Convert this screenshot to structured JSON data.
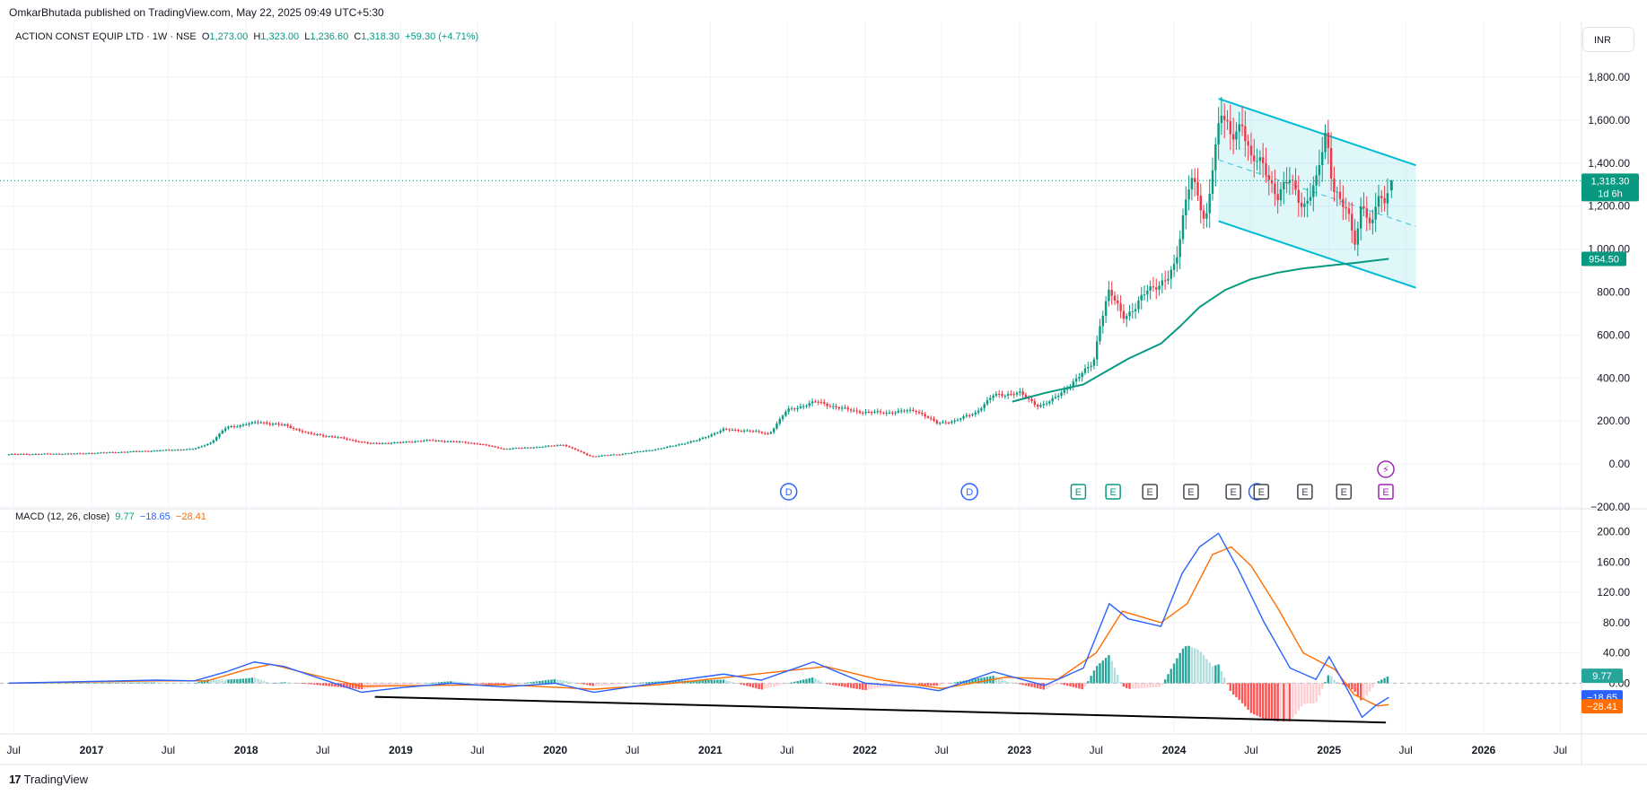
{
  "header": {
    "published": "OmkarBhutada published on TradingView.com, May 22, 2025 09:49 UTC+5:30"
  },
  "symbol": {
    "name": "ACTION CONST EQUIP LTD · 1W · NSE",
    "o_label": "O",
    "o": "1,273.00",
    "h_label": "H",
    "h": "1,323.00",
    "l_label": "L",
    "l": "1,236.60",
    "c_label": "C",
    "c": "1,318.30",
    "change": "+59.30 (+4.71%)"
  },
  "currency": "INR",
  "price_badges": {
    "last": "1,318.30",
    "countdown": "1d 6h",
    "ma": "954.50"
  },
  "macd_header": {
    "label": "MACD (12, 26, close)",
    "hist": "9.77",
    "macd": "−18.65",
    "signal": "−28.41"
  },
  "macd_badges": {
    "hist": "9.77",
    "macd": "−18.65",
    "signal": "−28.41"
  },
  "brand": {
    "name": "TradingView"
  },
  "colors": {
    "up": "#089981",
    "down": "#f23645",
    "macd": "#2962ff",
    "signal": "#ff6d00",
    "channel": "#00bcd4",
    "ma": "#089981",
    "earnings": "#089981",
    "dividend": "#2962ff",
    "purple": "#9c27b0"
  },
  "events": {
    "dividends": [
      {
        "date": "2021-07-05",
        "label": "D"
      },
      {
        "date": "2022-09-05",
        "label": "D"
      },
      {
        "date": "2024-07-15",
        "label": ""
      }
    ],
    "earnings": [
      {
        "date": "2023-05-20",
        "label": "E",
        "style": "green"
      },
      {
        "date": "2023-08-10",
        "label": "E",
        "style": "green"
      },
      {
        "date": "2023-11-05",
        "label": "E",
        "style": "gray"
      },
      {
        "date": "2024-02-10",
        "label": "E",
        "style": "gray"
      },
      {
        "date": "2024-05-20",
        "label": "E",
        "style": "gray"
      },
      {
        "date": "2024-07-25",
        "label": "E",
        "style": "gray"
      },
      {
        "date": "2024-11-05",
        "label": "E",
        "style": "gray"
      },
      {
        "date": "2025-02-05",
        "label": "E",
        "style": "gray"
      },
      {
        "date": "2025-05-15",
        "label": "E",
        "style": "purple"
      }
    ],
    "flash": {
      "date": "2025-05-15",
      "label": "⚡"
    }
  },
  "chart_data": [
    {
      "type": "candlestick",
      "title": "ACTION CONST EQUIP LTD · 1W · NSE",
      "ylim": [
        -200,
        1900
      ],
      "y_ticks": [
        "1,800.00",
        "1,600.00",
        "1,400.00",
        "1,200.00",
        "1,000.00",
        "800.00",
        "600.00",
        "400.00",
        "200.00",
        "0.00",
        "−200.00"
      ],
      "y_tick_values": [
        1800,
        1600,
        1400,
        1200,
        1000,
        800,
        600,
        400,
        200,
        0,
        -200
      ],
      "x_tick_labels": [
        "Jul",
        "2017",
        "Jul",
        "2018",
        "Jul",
        "2019",
        "Jul",
        "2020",
        "Jul",
        "2021",
        "Jul",
        "2022",
        "Jul",
        "2023",
        "Jul",
        "2024",
        "Jul",
        "2025",
        "Jul",
        "2026",
        "Jul"
      ],
      "x_tick_dates": [
        "2016-07-01",
        "2017-01-01",
        "2017-07-01",
        "2018-01-01",
        "2018-07-01",
        "2019-01-01",
        "2019-07-01",
        "2020-01-01",
        "2020-07-01",
        "2021-01-01",
        "2021-07-01",
        "2022-01-01",
        "2022-07-01",
        "2023-01-01",
        "2023-07-01",
        "2024-01-01",
        "2024-07-01",
        "2025-01-01",
        "2025-07-01",
        "2026-01-01",
        "2026-07-01"
      ],
      "xlim": [
        "2016-06-20",
        "2026-08-20"
      ],
      "price_path": [
        [
          "2016-06-20",
          45
        ],
        [
          "2016-12-01",
          48
        ],
        [
          "2017-06-01",
          62
        ],
        [
          "2017-09-01",
          70
        ],
        [
          "2017-10-10",
          100
        ],
        [
          "2017-11-15",
          170
        ],
        [
          "2018-02-01",
          195
        ],
        [
          "2018-04-01",
          180
        ],
        [
          "2018-06-01",
          140
        ],
        [
          "2018-08-01",
          125
        ],
        [
          "2018-10-20",
          95
        ],
        [
          "2019-01-01",
          100
        ],
        [
          "2019-03-01",
          110
        ],
        [
          "2019-05-01",
          105
        ],
        [
          "2019-07-01",
          95
        ],
        [
          "2019-09-01",
          70
        ],
        [
          "2019-12-01",
          80
        ],
        [
          "2020-01-20",
          90
        ],
        [
          "2020-03-25",
          35
        ],
        [
          "2020-06-01",
          45
        ],
        [
          "2020-09-01",
          70
        ],
        [
          "2020-12-01",
          110
        ],
        [
          "2021-02-01",
          160
        ],
        [
          "2021-04-01",
          155
        ],
        [
          "2021-05-20",
          140
        ],
        [
          "2021-07-01",
          250
        ],
        [
          "2021-09-10",
          290
        ],
        [
          "2021-11-01",
          260
        ],
        [
          "2022-01-01",
          240
        ],
        [
          "2022-03-01",
          240
        ],
        [
          "2022-05-01",
          250
        ],
        [
          "2022-06-20",
          190
        ],
        [
          "2022-08-01",
          200
        ],
        [
          "2022-09-20",
          240
        ],
        [
          "2022-11-01",
          320
        ],
        [
          "2023-01-01",
          330
        ],
        [
          "2023-02-15",
          270
        ],
        [
          "2023-03-15",
          290
        ],
        [
          "2023-05-20",
          400
        ],
        [
          "2023-06-25",
          480
        ],
        [
          "2023-07-10",
          650
        ],
        [
          "2023-08-01",
          800
        ],
        [
          "2023-09-05",
          690
        ],
        [
          "2023-10-01",
          720
        ],
        [
          "2023-11-01",
          820
        ],
        [
          "2023-12-15",
          850
        ],
        [
          "2024-01-05",
          930
        ],
        [
          "2024-01-25",
          1200
        ],
        [
          "2024-02-10",
          1350
        ],
        [
          "2024-03-15",
          1100
        ],
        [
          "2024-04-01",
          1400
        ],
        [
          "2024-04-20",
          1650
        ],
        [
          "2024-05-15",
          1500
        ],
        [
          "2024-06-10",
          1600
        ],
        [
          "2024-07-01",
          1420
        ],
        [
          "2024-08-01",
          1380
        ],
        [
          "2024-09-01",
          1250
        ],
        [
          "2024-10-01",
          1320
        ],
        [
          "2024-11-01",
          1200
        ],
        [
          "2024-12-01",
          1300
        ],
        [
          "2024-12-25",
          1550
        ],
        [
          "2025-01-10",
          1300
        ],
        [
          "2025-02-15",
          1150
        ],
        [
          "2025-03-05",
          1020
        ],
        [
          "2025-03-20",
          1250
        ],
        [
          "2025-04-10",
          1080
        ],
        [
          "2025-04-25",
          1240
        ],
        [
          "2025-05-10",
          1200
        ],
        [
          "2025-05-22",
          1318
        ]
      ],
      "last_candle": {
        "o": 1273.0,
        "h": 1323.0,
        "l": 1236.6,
        "c": 1318.3
      },
      "last_price": 1318.3,
      "ma_value": 954.5,
      "ma_path": [
        [
          "2022-12-15",
          290
        ],
        [
          "2023-03-01",
          330
        ],
        [
          "2023-06-01",
          370
        ],
        [
          "2023-07-15",
          420
        ],
        [
          "2023-09-15",
          490
        ],
        [
          "2023-12-01",
          560
        ],
        [
          "2024-01-15",
          640
        ],
        [
          "2024-03-01",
          730
        ],
        [
          "2024-05-01",
          810
        ],
        [
          "2024-07-01",
          860
        ],
        [
          "2024-09-01",
          890
        ],
        [
          "2024-11-01",
          910
        ],
        [
          "2025-01-10",
          925
        ],
        [
          "2025-03-01",
          935
        ],
        [
          "2025-05-22",
          954.5
        ]
      ],
      "channel": {
        "upper": [
          [
            "2024-04-15",
            1700
          ],
          [
            "2025-07-25",
            1390
          ]
        ],
        "lower": [
          [
            "2024-04-15",
            1130
          ],
          [
            "2025-07-25",
            820
          ]
        ],
        "mid": [
          [
            "2024-04-15",
            1415
          ],
          [
            "2025-07-25",
            1105
          ]
        ]
      }
    },
    {
      "type": "macd",
      "title": "MACD (12, 26, close)",
      "params": {
        "fast": 12,
        "slow": 26,
        "source": "close"
      },
      "ylim": [
        -60,
        215
      ],
      "y_ticks": [
        "200.00",
        "160.00",
        "120.00",
        "80.00",
        "40.00",
        "0.00"
      ],
      "y_tick_values": [
        200,
        160,
        120,
        80,
        40,
        0
      ],
      "last": {
        "histogram": 9.77,
        "macd": -18.65,
        "signal": -28.41
      },
      "macd_path": [
        [
          "2016-06-20",
          0
        ],
        [
          "2017-06-01",
          4
        ],
        [
          "2017-09-01",
          3
        ],
        [
          "2017-11-15",
          15
        ],
        [
          "2018-01-20",
          28
        ],
        [
          "2018-04-01",
          22
        ],
        [
          "2018-07-01",
          5
        ],
        [
          "2018-10-01",
          -12
        ],
        [
          "2019-01-01",
          -6
        ],
        [
          "2019-05-01",
          0
        ],
        [
          "2019-09-01",
          -5
        ],
        [
          "2020-01-01",
          0
        ],
        [
          "2020-04-01",
          -12
        ],
        [
          "2020-08-01",
          -2
        ],
        [
          "2021-02-01",
          12
        ],
        [
          "2021-05-01",
          4
        ],
        [
          "2021-09-01",
          28
        ],
        [
          "2022-01-01",
          0
        ],
        [
          "2022-05-01",
          -5
        ],
        [
          "2022-06-25",
          -10
        ],
        [
          "2022-11-01",
          15
        ],
        [
          "2023-03-01",
          -3
        ],
        [
          "2023-06-01",
          20
        ],
        [
          "2023-08-01",
          105
        ],
        [
          "2023-09-15",
          85
        ],
        [
          "2023-12-01",
          75
        ],
        [
          "2024-01-20",
          145
        ],
        [
          "2024-03-01",
          180
        ],
        [
          "2024-04-15",
          198
        ],
        [
          "2024-06-01",
          150
        ],
        [
          "2024-08-01",
          80
        ],
        [
          "2024-10-01",
          20
        ],
        [
          "2024-12-01",
          5
        ],
        [
          "2025-01-01",
          35
        ],
        [
          "2025-02-15",
          -10
        ],
        [
          "2025-03-20",
          -45
        ],
        [
          "2025-04-20",
          -30
        ],
        [
          "2025-05-22",
          -18.65
        ]
      ],
      "signal_path": [
        [
          "2016-06-20",
          0
        ],
        [
          "2017-06-01",
          3
        ],
        [
          "2017-10-01",
          3
        ],
        [
          "2018-01-01",
          18
        ],
        [
          "2018-03-01",
          25
        ],
        [
          "2018-06-01",
          12
        ],
        [
          "2018-10-01",
          -4
        ],
        [
          "2019-03-01",
          -3
        ],
        [
          "2019-09-01",
          -2
        ],
        [
          "2020-04-01",
          -8
        ],
        [
          "2020-09-01",
          -2
        ],
        [
          "2021-03-01",
          9
        ],
        [
          "2021-10-01",
          22
        ],
        [
          "2022-02-01",
          5
        ],
        [
          "2022-07-01",
          -7
        ],
        [
          "2022-12-01",
          8
        ],
        [
          "2023-04-01",
          5
        ],
        [
          "2023-07-01",
          40
        ],
        [
          "2023-09-01",
          95
        ],
        [
          "2023-12-01",
          80
        ],
        [
          "2024-02-01",
          105
        ],
        [
          "2024-04-01",
          170
        ],
        [
          "2024-05-15",
          180
        ],
        [
          "2024-07-01",
          155
        ],
        [
          "2024-09-01",
          100
        ],
        [
          "2024-11-01",
          40
        ],
        [
          "2025-01-15",
          18
        ],
        [
          "2025-03-01",
          -15
        ],
        [
          "2025-04-25",
          -30
        ],
        [
          "2025-05-22",
          -28.41
        ]
      ],
      "divergence_line": [
        [
          "2018-11-01",
          -18
        ],
        [
          "2025-05-15",
          -52
        ]
      ]
    }
  ]
}
